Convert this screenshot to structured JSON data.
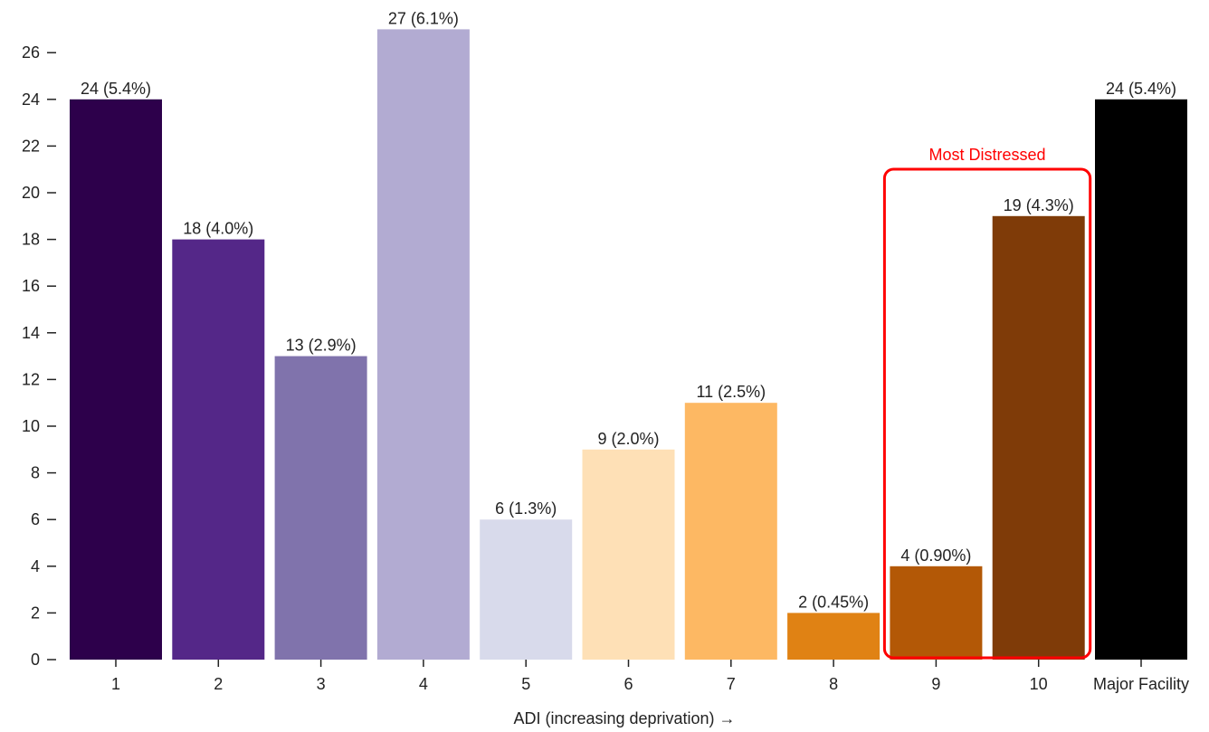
{
  "chart_data": {
    "type": "bar",
    "title": "",
    "xlabel": "ADI (increasing deprivation) →",
    "ylabel": "",
    "ylim": [
      0,
      27
    ],
    "yticks": [
      0,
      2,
      4,
      6,
      8,
      10,
      12,
      14,
      16,
      18,
      20,
      22,
      24,
      26
    ],
    "grid": false,
    "categories": [
      "1",
      "2",
      "3",
      "4",
      "5",
      "6",
      "7",
      "8",
      "9",
      "10",
      "Major Facility"
    ],
    "values": [
      24,
      18,
      13,
      27,
      6,
      9,
      11,
      2,
      4,
      19,
      24
    ],
    "data_labels": [
      "24 (5.4%)",
      "18 (4.0%)",
      "13 (2.9%)",
      "27 (6.1%)",
      "6 (1.3%)",
      "9 (2.0%)",
      "11 (2.5%)",
      "2 (0.45%)",
      "4 (0.90%)",
      "19 (4.3%)",
      "24 (5.4%)"
    ],
    "colors": [
      "#2d004b",
      "#542788",
      "#8073ac",
      "#b2abd2",
      "#d8daeb",
      "#fee0b6",
      "#fdb863",
      "#e08214",
      "#b35806",
      "#7f3b08",
      "#000000"
    ],
    "annotation": {
      "label": "Most Distressed",
      "color": "#ff0000",
      "categories": [
        "9",
        "10"
      ]
    }
  }
}
